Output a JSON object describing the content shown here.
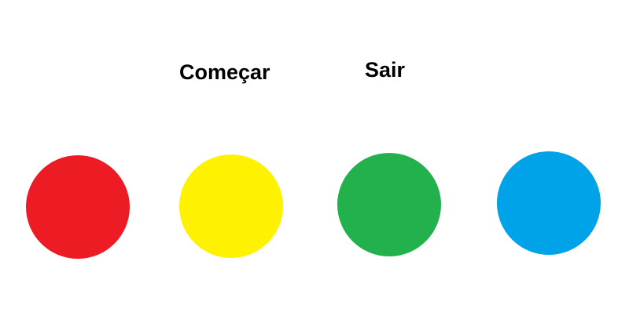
{
  "menu": {
    "start_label": "Começar",
    "exit_label": "Sair"
  },
  "circles": [
    {
      "name": "red",
      "color": "#ed1c24"
    },
    {
      "name": "yellow",
      "color": "#fff200"
    },
    {
      "name": "green",
      "color": "#22b14c"
    },
    {
      "name": "blue",
      "color": "#00a2e8"
    }
  ]
}
